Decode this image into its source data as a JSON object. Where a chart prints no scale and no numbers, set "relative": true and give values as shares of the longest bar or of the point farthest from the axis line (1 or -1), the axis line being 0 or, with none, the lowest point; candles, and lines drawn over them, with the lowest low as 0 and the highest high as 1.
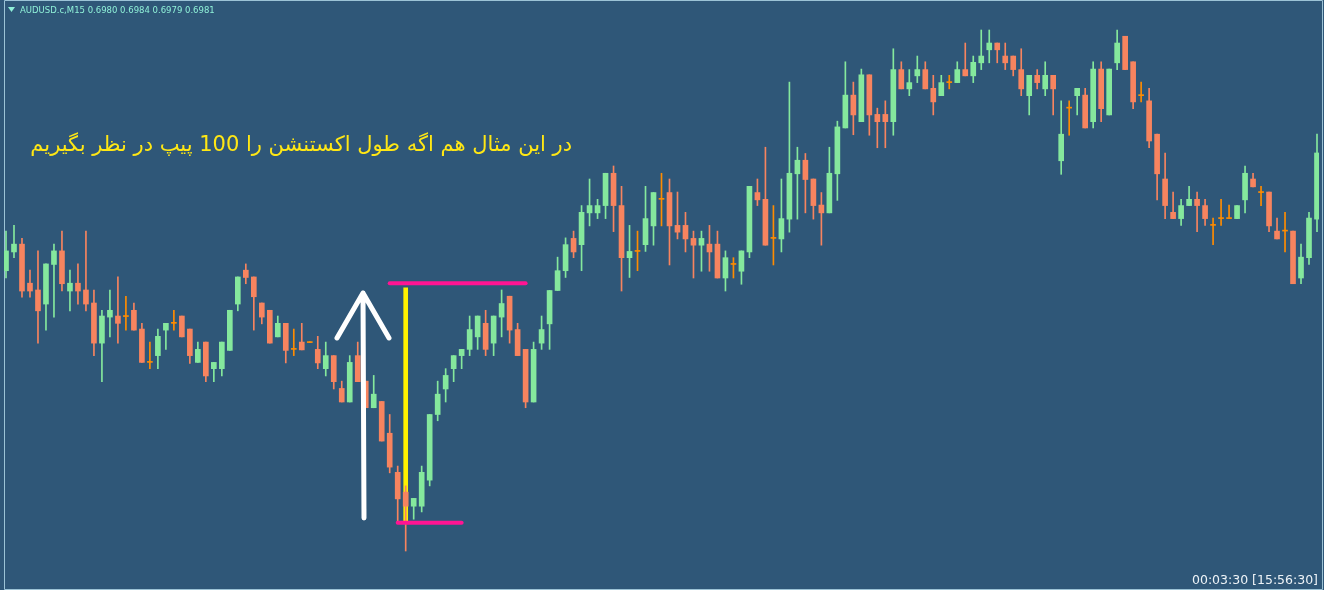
{
  "chart_data": {
    "type": "candlestick",
    "title": "AUDUSD.c,M15 0.6980 0.6984 0.6979 0.6981",
    "annotations": [
      "در این مثال هم اگه طول اکستنشن را 100 پیپ در نظر بگیریم",
      "00:03:30 [15:56:30]"
    ],
    "relative": true,
    "tick_labels": false,
    "grid": false,
    "legend": false,
    "categories": [
      null,
      null,
      null,
      null,
      null,
      null,
      null,
      null,
      null,
      null,
      null,
      null,
      null,
      null,
      null,
      null,
      null,
      null,
      null,
      null,
      null,
      null,
      null,
      null,
      null,
      null,
      null,
      null,
      null,
      null,
      null,
      null,
      null,
      null,
      null,
      null,
      null,
      null,
      null,
      null,
      null,
      null,
      null,
      null,
      null,
      null,
      null,
      null,
      null,
      null,
      null,
      null,
      null,
      null,
      null,
      null,
      null,
      null,
      null,
      null,
      null,
      null,
      null,
      null,
      null,
      null,
      null,
      null,
      null,
      null,
      null,
      null,
      null,
      null,
      null,
      null,
      null,
      null,
      null,
      null,
      null,
      null,
      null,
      null,
      null,
      null,
      null,
      null,
      null,
      null,
      null,
      null,
      null,
      null,
      null,
      null,
      null,
      null,
      null,
      null,
      null,
      null,
      null,
      null,
      null,
      null,
      null,
      null,
      null,
      null,
      null,
      null,
      null,
      null,
      null,
      null,
      null,
      null,
      null,
      null,
      null,
      null,
      null,
      null,
      null,
      null,
      null,
      null,
      null,
      null,
      null,
      null,
      null,
      null,
      null,
      null,
      null,
      null,
      null,
      null,
      null,
      null,
      null,
      null,
      null,
      null,
      null,
      null,
      null,
      null,
      null,
      null,
      null,
      null,
      null,
      null,
      null,
      null,
      null,
      null,
      null,
      null,
      null,
      null,
      null
    ],
    "ohlc": [
      [
        0.538,
        0.614,
        0.524,
        0.576
      ],
      [
        0.574,
        0.625,
        0.563,
        0.589
      ],
      [
        0.589,
        0.6,
        0.487,
        0.499
      ],
      [
        0.514,
        0.539,
        0.487,
        0.499
      ],
      [
        0.501,
        0.576,
        0.399,
        0.461
      ],
      [
        0.474,
        0.551,
        0.424,
        0.551
      ],
      [
        0.55,
        0.589,
        0.449,
        0.576
      ],
      [
        0.576,
        0.614,
        0.499,
        0.513
      ],
      [
        0.499,
        0.539,
        0.461,
        0.514
      ],
      [
        0.514,
        0.551,
        0.474,
        0.499
      ],
      [
        0.501,
        0.614,
        0.461,
        0.474
      ],
      [
        0.476,
        0.501,
        0.375,
        0.399
      ],
      [
        0.399,
        0.462,
        0.325,
        0.451
      ],
      [
        0.449,
        0.501,
        0.411,
        0.462
      ],
      [
        0.451,
        0.526,
        0.399,
        0.437
      ],
      [
        0.45,
        0.489,
        0.424,
        0.45
      ],
      [
        0.462,
        0.476,
        0.424,
        0.424
      ],
      [
        0.426,
        0.437,
        0.362,
        0.362
      ],
      [
        0.362,
        0.401,
        0.35,
        0.362
      ],
      [
        0.375,
        0.426,
        0.35,
        0.412
      ],
      [
        0.424,
        0.437,
        0.387,
        0.437
      ],
      [
        0.437,
        0.462,
        0.424,
        0.437
      ],
      [
        0.451,
        0.451,
        0.411,
        0.411
      ],
      [
        0.426,
        0.426,
        0.36,
        0.375
      ],
      [
        0.362,
        0.401,
        0.362,
        0.387
      ],
      [
        0.401,
        0.401,
        0.325,
        0.336
      ],
      [
        0.35,
        0.362,
        0.325,
        0.362
      ],
      [
        0.35,
        0.401,
        0.336,
        0.401
      ],
      [
        0.385,
        0.462,
        0.385,
        0.462
      ],
      [
        0.474,
        0.526,
        0.461,
        0.526
      ],
      [
        0.539,
        0.551,
        0.513,
        0.525
      ],
      [
        0.526,
        0.526,
        0.424,
        0.488
      ],
      [
        0.476,
        0.476,
        0.436,
        0.449
      ],
      [
        0.462,
        0.462,
        0.399,
        0.399
      ],
      [
        0.411,
        0.451,
        0.411,
        0.437
      ],
      [
        0.437,
        0.437,
        0.361,
        0.385
      ],
      [
        0.387,
        0.426,
        0.375,
        0.387
      ],
      [
        0.401,
        0.437,
        0.386,
        0.386
      ],
      [
        0.4,
        0.4,
        0.4,
        0.4
      ],
      [
        0.387,
        0.412,
        0.35,
        0.361
      ],
      [
        0.35,
        0.401,
        0.336,
        0.375
      ],
      [
        0.375,
        0.375,
        0.311,
        0.325
      ],
      [
        0.312,
        0.326,
        0.286,
        0.286
      ],
      [
        0.286,
        0.375,
        0.286,
        0.362
      ],
      [
        0.375,
        0.401,
        0.325,
        0.325
      ],
      [
        0.326,
        0.326,
        0.275,
        0.275
      ],
      [
        0.275,
        0.337,
        0.275,
        0.301
      ],
      [
        0.287,
        0.287,
        0.211,
        0.211
      ],
      [
        0.226,
        0.262,
        0.15,
        0.161
      ],
      [
        0.151,
        0.163,
        0.058,
        0.1
      ],
      [
        0.113,
        0.125,
        0,
        0.086
      ],
      [
        0.086,
        0.101,
        0.061,
        0.101
      ],
      [
        0.086,
        0.163,
        0.075,
        0.151
      ],
      [
        0.136,
        0.262,
        0.125,
        0.262
      ],
      [
        0.262,
        0.326,
        0.25,
        0.301
      ],
      [
        0.311,
        0.35,
        0.286,
        0.337
      ],
      [
        0.35,
        0.375,
        0.325,
        0.375
      ],
      [
        0.375,
        0.387,
        0.35,
        0.387
      ],
      [
        0.387,
        0.451,
        0.375,
        0.425
      ],
      [
        0.411,
        0.451,
        0.387,
        0.451
      ],
      [
        0.437,
        0.462,
        0.375,
        0.387
      ],
      [
        0.399,
        0.451,
        0.375,
        0.451
      ],
      [
        0.449,
        0.501,
        0.411,
        0.475
      ],
      [
        0.489,
        0.489,
        0.399,
        0.424
      ],
      [
        0.425,
        0.437,
        0.375,
        0.375
      ],
      [
        0.387,
        0.387,
        0.275,
        0.286
      ],
      [
        0.286,
        0.401,
        0.286,
        0.387
      ],
      [
        0.399,
        0.451,
        0.387,
        0.425
      ],
      [
        0.436,
        0.5,
        0.387,
        0.5
      ],
      [
        0.5,
        0.564,
        0.5,
        0.538
      ],
      [
        0.538,
        0.601,
        0.525,
        0.588
      ],
      [
        0.6,
        0.614,
        0.563,
        0.574
      ],
      [
        0.588,
        0.663,
        0.538,
        0.65
      ],
      [
        0.649,
        0.714,
        0.624,
        0.663
      ],
      [
        0.649,
        0.675,
        0.638,
        0.663
      ],
      [
        0.663,
        0.725,
        0.638,
        0.725
      ],
      [
        0.725,
        0.739,
        0.613,
        0.663
      ],
      [
        0.663,
        0.7,
        0.499,
        0.563
      ],
      [
        0.563,
        0.625,
        0.525,
        0.575
      ],
      [
        0.575,
        0.614,
        0.538,
        0.575
      ],
      [
        0.588,
        0.7,
        0.575,
        0.638
      ],
      [
        0.624,
        0.688,
        0.587,
        0.688
      ],
      [
        0.675,
        0.725,
        0.624,
        0.675
      ],
      [
        0.688,
        0.714,
        0.549,
        0.624
      ],
      [
        0.625,
        0.689,
        0.599,
        0.612
      ],
      [
        0.625,
        0.65,
        0.574,
        0.599
      ],
      [
        0.6,
        0.614,
        0.524,
        0.587
      ],
      [
        0.587,
        0.614,
        0.537,
        0.6
      ],
      [
        0.589,
        0.625,
        0.537,
        0.574
      ],
      [
        0.589,
        0.614,
        0.524,
        0.524
      ],
      [
        0.524,
        0.576,
        0.499,
        0.563
      ],
      [
        0.55,
        0.563,
        0.524,
        0.55
      ],
      [
        0.537,
        0.576,
        0.512,
        0.576
      ],
      [
        0.574,
        0.7,
        0.563,
        0.7
      ],
      [
        0.688,
        0.714,
        0.663,
        0.674
      ],
      [
        0.675,
        0.775,
        0.587,
        0.587
      ],
      [
        0.6,
        0.663,
        0.549,
        0.6
      ],
      [
        0.599,
        0.714,
        0.574,
        0.638
      ],
      [
        0.637,
        0.9,
        0.612,
        0.725
      ],
      [
        0.724,
        0.775,
        0.637,
        0.75
      ],
      [
        0.75,
        0.763,
        0.649,
        0.713
      ],
      [
        0.714,
        0.714,
        0.637,
        0.663
      ],
      [
        0.664,
        0.688,
        0.587,
        0.649
      ],
      [
        0.649,
        0.775,
        0.649,
        0.725
      ],
      [
        0.724,
        0.825,
        0.673,
        0.814
      ],
      [
        0.812,
        0.939,
        0.812,
        0.875
      ],
      [
        0.875,
        0.9,
        0.799,
        0.837
      ],
      [
        0.824,
        0.925,
        0.824,
        0.914
      ],
      [
        0.914,
        0.914,
        0.798,
        0.837
      ],
      [
        0.838,
        0.85,
        0.774,
        0.824
      ],
      [
        0.838,
        0.864,
        0.774,
        0.824
      ],
      [
        0.824,
        0.964,
        0.798,
        0.924
      ],
      [
        0.924,
        0.939,
        0.887,
        0.887
      ],
      [
        0.887,
        0.924,
        0.874,
        0.899
      ],
      [
        0.912,
        0.95,
        0.899,
        0.924
      ],
      [
        0.924,
        0.939,
        0.887,
        0.887
      ],
      [
        0.888,
        0.913,
        0.837,
        0.862
      ],
      [
        0.874,
        0.913,
        0.874,
        0.899
      ],
      [
        0.899,
        0.913,
        0.887,
        0.899
      ],
      [
        0.899,
        0.939,
        0.899,
        0.924
      ],
      [
        0.924,
        0.975,
        0.912,
        0.912
      ],
      [
        0.912,
        0.95,
        0.899,
        0.938
      ],
      [
        0.937,
        1,
        0.924,
        0.95
      ],
      [
        0.962,
        1,
        0.937,
        0.975
      ],
      [
        0.975,
        0.975,
        0.937,
        0.962
      ],
      [
        0.95,
        0.975,
        0.924,
        0.937
      ],
      [
        0.95,
        0.95,
        0.912,
        0.924
      ],
      [
        0.924,
        0.964,
        0.874,
        0.887
      ],
      [
        0.874,
        0.913,
        0.837,
        0.913
      ],
      [
        0.913,
        0.924,
        0.887,
        0.899
      ],
      [
        0.887,
        0.939,
        0.874,
        0.913
      ],
      [
        0.913,
        0.913,
        0.837,
        0.887
      ],
      [
        0.749,
        0.864,
        0.723,
        0.8
      ],
      [
        0.85,
        0.864,
        0.798,
        0.85
      ],
      [
        0.874,
        0.888,
        0.837,
        0.888
      ],
      [
        0.875,
        0.888,
        0.812,
        0.812
      ],
      [
        0.824,
        0.939,
        0.812,
        0.925
      ],
      [
        0.925,
        0.939,
        0.824,
        0.849
      ],
      [
        0.837,
        0.925,
        0.837,
        0.925
      ],
      [
        0.937,
        1,
        0.924,
        0.975
      ],
      [
        0.988,
        0.988,
        0.924,
        0.924
      ],
      [
        0.939,
        0.939,
        0.849,
        0.862
      ],
      [
        0.874,
        0.9,
        0.862,
        0.874
      ],
      [
        0.864,
        0.888,
        0.774,
        0.787
      ],
      [
        0.8,
        0.8,
        0.674,
        0.724
      ],
      [
        0.714,
        0.764,
        0.638,
        0.663
      ],
      [
        0.65,
        0.689,
        0.638,
        0.638
      ],
      [
        0.638,
        0.675,
        0.625,
        0.663
      ],
      [
        0.663,
        0.7,
        0.663,
        0.675
      ],
      [
        0.675,
        0.689,
        0.613,
        0.663
      ],
      [
        0.663,
        0.675,
        0.625,
        0.638
      ],
      [
        0.625,
        0.639,
        0.588,
        0.625
      ],
      [
        0.638,
        0.675,
        0.625,
        0.638
      ],
      [
        0.638,
        0.664,
        0.638,
        0.638
      ],
      [
        0.638,
        0.663,
        0.638,
        0.663
      ],
      [
        0.674,
        0.739,
        0.649,
        0.725
      ],
      [
        0.714,
        0.725,
        0.699,
        0.699
      ],
      [
        0.688,
        0.7,
        0.663,
        0.688
      ],
      [
        0.689,
        0.689,
        0.613,
        0.624
      ],
      [
        0.614,
        0.639,
        0.599,
        0.599
      ],
      [
        0.614,
        0.65,
        0.574,
        0.614
      ],
      [
        0.614,
        0.614,
        0.513,
        0.513
      ],
      [
        0.524,
        0.589,
        0.513,
        0.564
      ],
      [
        0.563,
        0.65,
        0.55,
        0.639
      ],
      [
        0.637,
        0.8,
        0.613,
        0.764
      ]
    ],
    "colors": [
      "#85e89d",
      "#85e89d",
      "#f7845f",
      "#f7845f",
      "#f7845f",
      "#85e89d",
      "#85e89d",
      "#f7845f",
      "#85e89d",
      "#f7845f",
      "#f7845f",
      "#f7845f",
      "#85e89d",
      "#85e89d",
      "#f7845f",
      "#ff8c00",
      "#f7845f",
      "#f7845f",
      "#ff8c00",
      "#85e89d",
      "#85e89d",
      "#ff8c00",
      "#f7845f",
      "#f7845f",
      "#85e89d",
      "#f7845f",
      "#85e89d",
      "#85e89d",
      "#85e89d",
      "#85e89d",
      "#f7845f",
      "#f7845f",
      "#f7845f",
      "#f7845f",
      "#85e89d",
      "#f7845f",
      "#ff8c00",
      "#f7845f",
      "#ff8c00",
      "#f7845f",
      "#85e89d",
      "#f7845f",
      "#f7845f",
      "#85e89d",
      "#f7845f",
      "#f7845f",
      "#85e89d",
      "#f7845f",
      "#f7845f",
      "#f7845f",
      "#f7845f",
      "#85e89d",
      "#85e89d",
      "#85e89d",
      "#85e89d",
      "#85e89d",
      "#85e89d",
      "#85e89d",
      "#85e89d",
      "#85e89d",
      "#f7845f",
      "#85e89d",
      "#85e89d",
      "#f7845f",
      "#f7845f",
      "#f7845f",
      "#85e89d",
      "#85e89d",
      "#85e89d",
      "#85e89d",
      "#85e89d",
      "#f7845f",
      "#85e89d",
      "#85e89d",
      "#85e89d",
      "#85e89d",
      "#f7845f",
      "#f7845f",
      "#85e89d",
      "#ff8c00",
      "#85e89d",
      "#85e89d",
      "#ff8c00",
      "#f7845f",
      "#f7845f",
      "#f7845f",
      "#f7845f",
      "#85e89d",
      "#f7845f",
      "#f7845f",
      "#85e89d",
      "#ff8c00",
      "#85e89d",
      "#85e89d",
      "#f7845f",
      "#f7845f",
      "#ff8c00",
      "#85e89d",
      "#85e89d",
      "#85e89d",
      "#f7845f",
      "#f7845f",
      "#f7845f",
      "#85e89d",
      "#85e89d",
      "#85e89d",
      "#f7845f",
      "#85e89d",
      "#f7845f",
      "#f7845f",
      "#f7845f",
      "#85e89d",
      "#f7845f",
      "#85e89d",
      "#85e89d",
      "#f7845f",
      "#f7845f",
      "#85e89d",
      "#ff8c00",
      "#85e89d",
      "#f7845f",
      "#85e89d",
      "#85e89d",
      "#85e89d",
      "#f7845f",
      "#f7845f",
      "#f7845f",
      "#f7845f",
      "#85e89d",
      "#f7845f",
      "#85e89d",
      "#f7845f",
      "#85e89d",
      "#ff8c00",
      "#85e89d",
      "#f7845f",
      "#85e89d",
      "#f7845f",
      "#85e89d",
      "#85e89d",
      "#f7845f",
      "#f7845f",
      "#ff8c00",
      "#f7845f",
      "#f7845f",
      "#f7845f",
      "#f7845f",
      "#85e89d",
      "#85e89d",
      "#f7845f",
      "#f7845f",
      "#ff8c00",
      "#ff8c00",
      "#ff8c00",
      "#85e89d",
      "#85e89d",
      "#f7845f",
      "#ff8c00",
      "#f7845f",
      "#f7845f",
      "#ff8c00",
      "#f7845f",
      "#85e89d",
      "#85e89d",
      "#85e89d"
    ],
    "series": [
      {
        "type": "line",
        "color": "#ff1493",
        "marker": "none",
        "values": [
          null,
          null,
          null,
          null,
          null,
          null,
          null,
          null,
          null,
          null,
          null,
          null,
          null,
          null,
          null,
          null,
          null,
          null,
          null,
          null,
          null,
          null,
          null,
          null,
          null,
          null,
          null,
          null,
          null,
          null,
          null,
          null,
          null,
          null,
          null,
          null,
          null,
          null,
          null,
          null,
          null,
          null,
          null,
          null,
          null,
          null,
          null,
          null,
          0.514,
          0.514,
          0.514,
          0.514,
          0.514,
          0.514,
          0.514,
          0.514,
          0.514,
          0.514,
          0.514,
          0.514,
          0.514,
          0.514,
          0.514,
          0.514,
          0.514,
          0.514,
          null,
          null,
          null,
          null,
          null,
          null,
          null,
          null,
          null,
          null,
          null,
          null,
          null,
          null,
          null,
          null,
          null,
          null,
          null,
          null,
          null,
          null,
          null,
          null,
          null,
          null,
          null,
          null,
          null,
          null,
          null,
          null,
          null,
          null,
          null,
          null,
          null,
          null,
          null,
          null,
          null,
          null,
          null,
          null,
          null,
          null,
          null,
          null,
          null,
          null,
          null,
          null,
          null,
          null,
          null,
          null,
          null,
          null,
          null,
          null,
          null,
          null,
          null,
          null,
          null,
          null,
          null,
          null,
          null,
          null,
          null,
          null,
          null,
          null,
          null,
          null,
          null,
          null,
          null,
          null,
          null,
          null,
          null,
          null,
          null,
          null,
          null,
          null,
          null,
          null,
          null,
          null,
          null,
          null,
          null,
          null,
          null,
          null,
          null
        ]
      },
      {
        "type": "line",
        "color": "#ff1493",
        "marker": "none",
        "values": [
          null,
          null,
          null,
          null,
          null,
          null,
          null,
          null,
          null,
          null,
          null,
          null,
          null,
          null,
          null,
          null,
          null,
          null,
          null,
          null,
          null,
          null,
          null,
          null,
          null,
          null,
          null,
          null,
          null,
          null,
          null,
          null,
          null,
          null,
          null,
          null,
          null,
          null,
          null,
          null,
          null,
          null,
          null,
          null,
          null,
          null,
          null,
          null,
          null,
          0.054,
          0.054,
          0.054,
          0.054,
          0.054,
          0.054,
          0.054,
          0.054,
          0.054,
          null,
          null,
          null,
          null,
          null,
          null,
          null,
          null,
          null,
          null,
          null,
          null,
          null,
          null,
          null,
          null,
          null,
          null,
          null,
          null,
          null,
          null,
          null,
          null,
          null,
          null,
          null,
          null,
          null,
          null,
          null,
          null,
          null,
          null,
          null,
          null,
          null,
          null,
          null,
          null,
          null,
          null,
          null,
          null,
          null,
          null,
          null,
          null,
          null,
          null,
          null,
          null,
          null,
          null,
          null,
          null,
          null,
          null,
          null,
          null,
          null,
          null,
          null,
          null,
          null,
          null,
          null,
          null,
          null,
          null,
          null,
          null,
          null,
          null,
          null,
          null,
          null,
          null,
          null,
          null,
          null,
          null,
          null,
          null,
          null,
          null,
          null,
          null,
          null,
          null,
          null,
          null,
          null,
          null,
          null,
          null,
          null,
          null,
          null,
          null,
          null,
          null,
          null,
          null,
          null,
          null,
          null
        ]
      },
      {
        "type": "bar",
        "color": "#fff200",
        "values": [
          null,
          null,
          null,
          null,
          null,
          null,
          null,
          null,
          null,
          null,
          null,
          null,
          null,
          null,
          null,
          null,
          null,
          null,
          null,
          null,
          null,
          null,
          null,
          null,
          null,
          null,
          null,
          null,
          null,
          null,
          null,
          null,
          null,
          null,
          null,
          null,
          null,
          null,
          null,
          null,
          null,
          null,
          null,
          null,
          null,
          null,
          null,
          null,
          null,
          null,
          0.451,
          null,
          null,
          null,
          null,
          null,
          null,
          null,
          null,
          null,
          null,
          null,
          null,
          null,
          null,
          null,
          null,
          null,
          null,
          null,
          null,
          null,
          null,
          null,
          null,
          null,
          null,
          null,
          null,
          null,
          null,
          null,
          null,
          null,
          null,
          null,
          null,
          null,
          null,
          null,
          null,
          null,
          null,
          null,
          null,
          null,
          null,
          null,
          null,
          null,
          null,
          null,
          null,
          null,
          null,
          null,
          null,
          null,
          null,
          null,
          null,
          null,
          null,
          null,
          null,
          null,
          null,
          null,
          null,
          null,
          null,
          null,
          null,
          null,
          null,
          null,
          null,
          null,
          null,
          null,
          null,
          null,
          null,
          null,
          null,
          null,
          null,
          null,
          null,
          null,
          null,
          null,
          null,
          null,
          null,
          null,
          null,
          null,
          null,
          null,
          null,
          null,
          null,
          null,
          null,
          null,
          null,
          null,
          null,
          null,
          null,
          null,
          null,
          null,
          null
        ],
        "base": [
          null,
          null,
          null,
          null,
          null,
          null,
          null,
          null,
          null,
          null,
          null,
          null,
          null,
          null,
          null,
          null,
          null,
          null,
          null,
          null,
          null,
          null,
          null,
          null,
          null,
          null,
          null,
          null,
          null,
          null,
          null,
          null,
          null,
          null,
          null,
          null,
          null,
          null,
          null,
          null,
          null,
          null,
          null,
          null,
          null,
          null,
          null,
          null,
          null,
          null,
          0.054,
          null,
          null,
          null,
          null,
          null,
          null,
          null,
          null,
          null,
          null,
          null,
          null,
          null,
          null,
          null,
          null,
          null,
          null,
          null,
          null,
          null,
          null,
          null,
          null,
          null,
          null,
          null,
          null,
          null,
          null,
          null,
          null,
          null,
          null,
          null,
          null,
          null,
          null,
          null,
          null,
          null,
          null,
          null,
          null,
          null,
          null,
          null,
          null,
          null,
          null,
          null,
          null,
          null,
          null,
          null,
          null,
          null,
          null,
          null,
          null,
          null,
          null,
          null,
          null,
          null,
          null,
          null,
          null,
          null,
          null,
          null,
          null,
          null,
          null,
          null,
          null,
          null,
          null,
          null,
          null,
          null,
          null,
          null,
          null,
          null,
          null,
          null,
          null,
          null,
          null,
          null,
          null,
          null,
          null,
          null,
          null,
          null,
          null,
          null,
          null,
          null,
          null,
          null,
          null,
          null,
          null,
          null,
          null,
          null,
          null,
          null,
          null,
          null,
          null
        ]
      }
    ]
  }
}
